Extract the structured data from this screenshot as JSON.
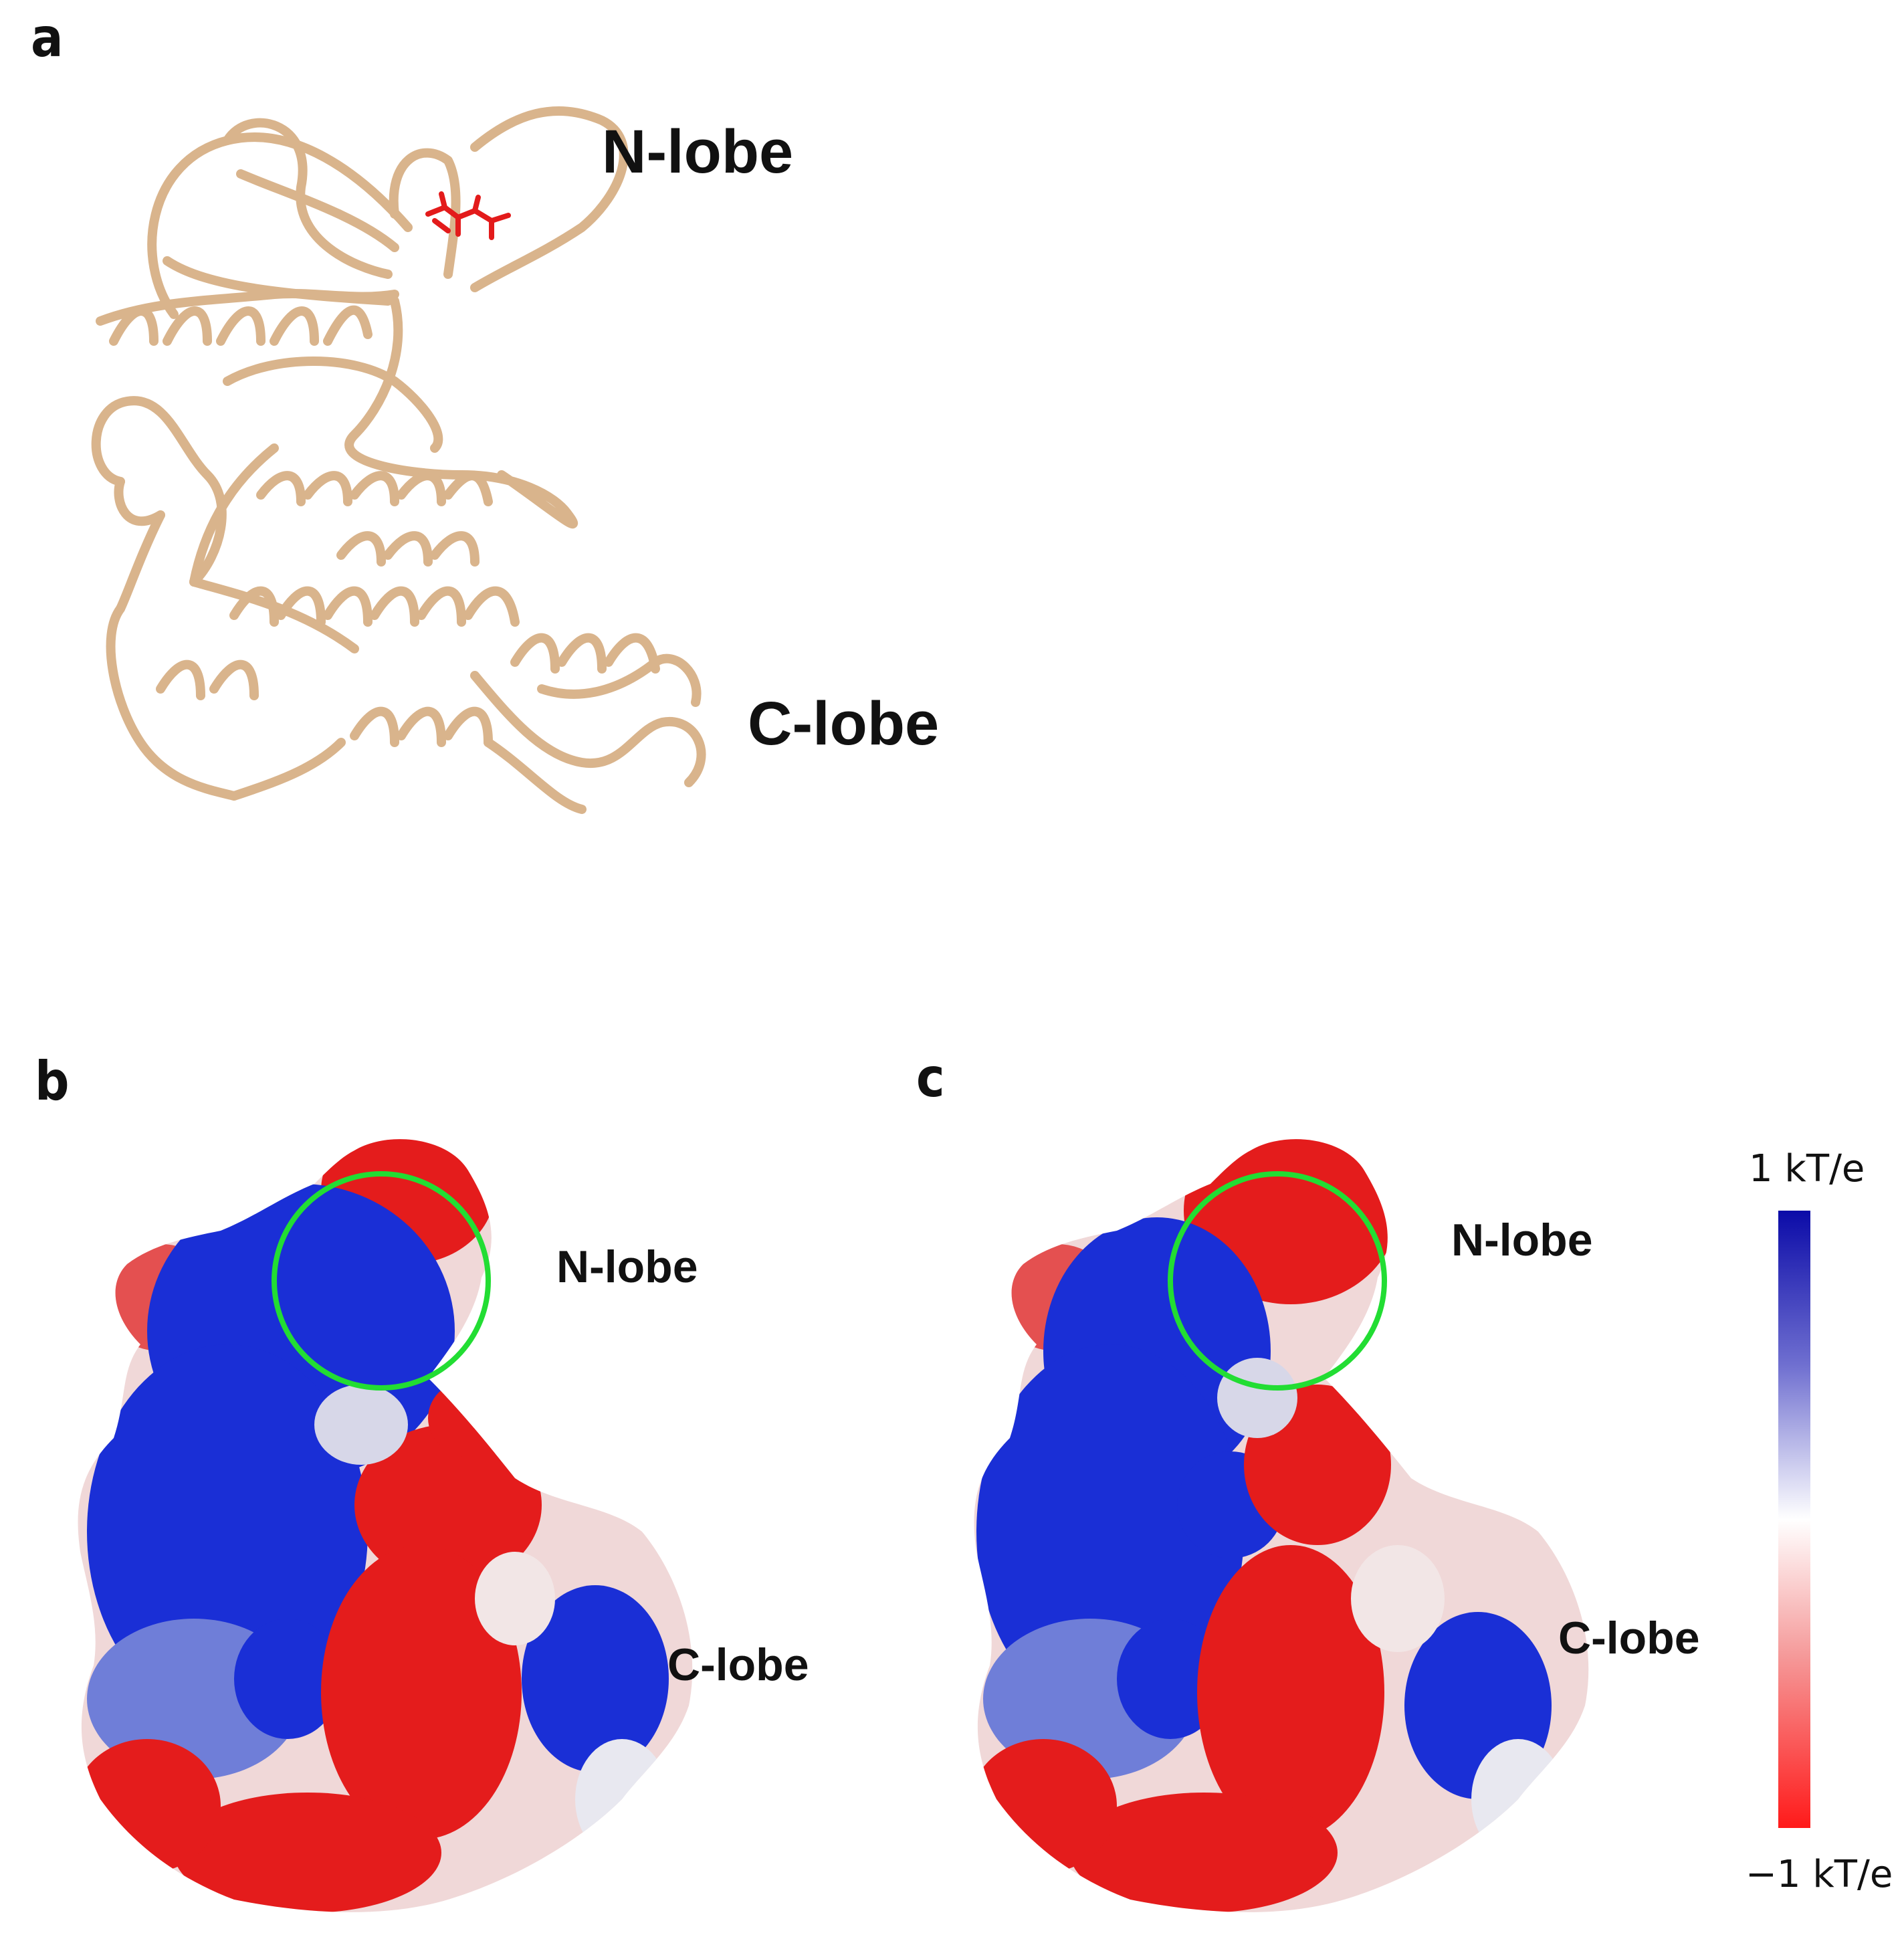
{
  "panels": {
    "a": {
      "letter": "a",
      "n_lobe": "N-lobe",
      "c_lobe": "C-lobe"
    },
    "b": {
      "letter": "b",
      "n_lobe": "N-lobe",
      "c_lobe": "C-lobe"
    },
    "c": {
      "letter": "c",
      "n_lobe": "N-lobe",
      "c_lobe": "C-lobe"
    }
  },
  "colorbar": {
    "max_label": "1 kT/e",
    "min_label": "−1 kT/e",
    "colors": {
      "positive": "#0b0ba8",
      "neutral": "#ffffff",
      "negative": "#ff1a1a"
    }
  },
  "colors": {
    "ribbon": "#d9b48c",
    "ligand": "#e31b1b",
    "circle": "#22dd33",
    "positive": "#1a2fd6",
    "negative": "#e41c1c"
  }
}
